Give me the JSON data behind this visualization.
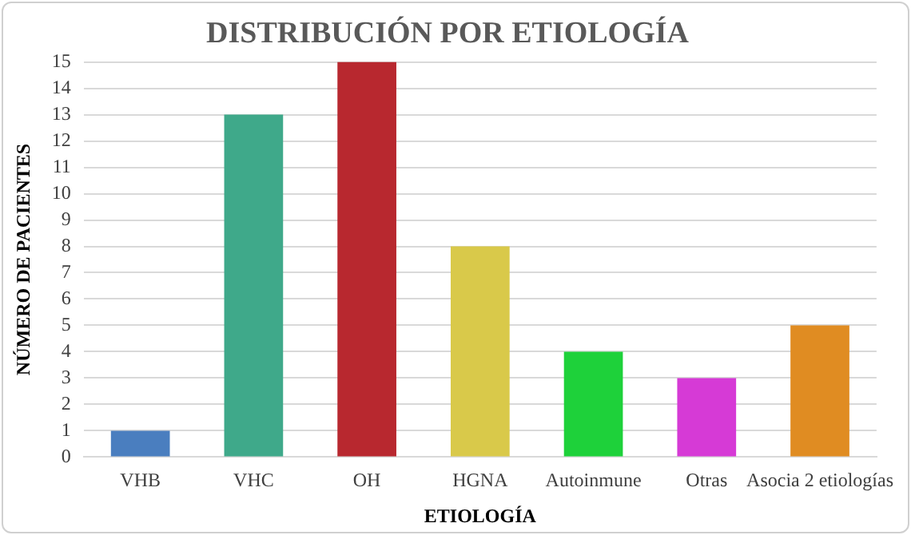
{
  "chart_data": {
    "type": "bar",
    "title": "DISTRIBUCIÓN POR ETIOLOGÍA",
    "xlabel": "ETIOLOGÍA",
    "ylabel": "NÚMERO DE PACIENTES",
    "categories": [
      "VHB",
      "VHC",
      "OH",
      "HGNA",
      "Autoinmune",
      "Otras",
      "Asocia 2 etiologías"
    ],
    "values": [
      1,
      13,
      15,
      8,
      4,
      3,
      5
    ],
    "colors": [
      "#4a7ebf",
      "#3fa98a",
      "#b8282f",
      "#d9c94a",
      "#1ed13a",
      "#d63ad6",
      "#e08c22"
    ],
    "ylim": [
      0,
      15
    ],
    "yticks": [
      0,
      1,
      2,
      3,
      4,
      5,
      6,
      7,
      8,
      9,
      10,
      11,
      12,
      13,
      14,
      15
    ],
    "grid": "y"
  }
}
